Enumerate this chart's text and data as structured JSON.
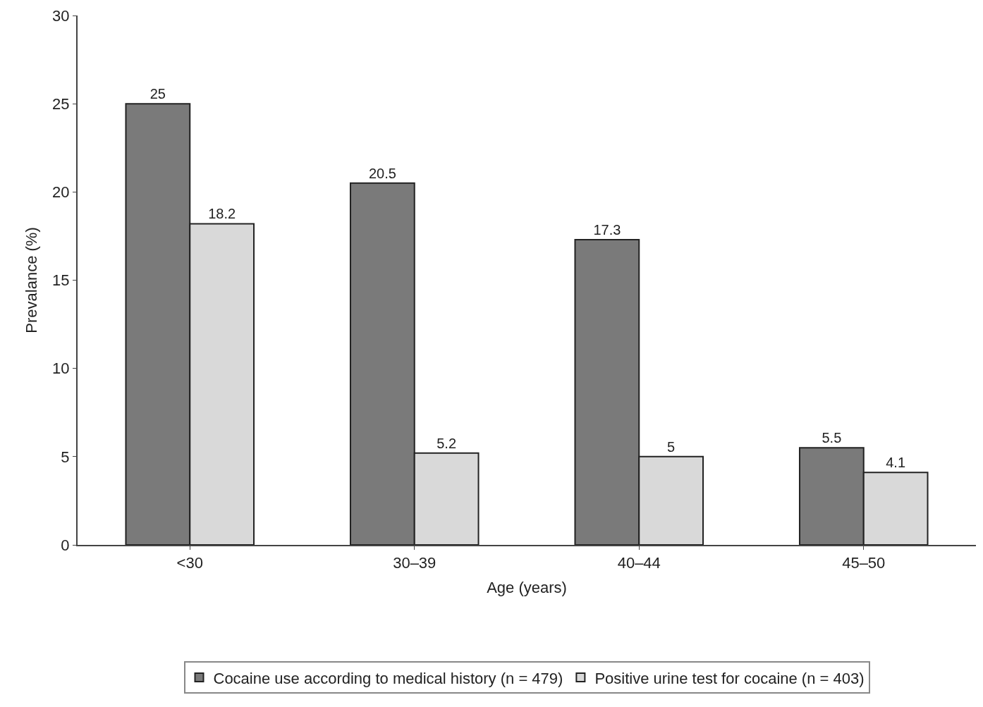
{
  "chart_data": {
    "type": "bar",
    "xlabel": "Age (years)",
    "ylabel": "Prevalance (%)",
    "categories": [
      "<30",
      "30–39",
      "40–44",
      "45–50"
    ],
    "series": [
      {
        "name": "Cocaine use according to medical history (n = 479)",
        "color": "#7a7a7a",
        "values": [
          25,
          20.5,
          17.3,
          5.5
        ]
      },
      {
        "name": "Positive urine test for cocaine (n = 403)",
        "color": "#d9d9d9",
        "values": [
          18.2,
          5.2,
          5,
          4.1
        ]
      }
    ],
    "ylim": [
      0,
      30
    ],
    "yticks": [
      0,
      5,
      10,
      15,
      20,
      25,
      30
    ],
    "grid": false,
    "legend": "bottom",
    "data_labels": true
  }
}
